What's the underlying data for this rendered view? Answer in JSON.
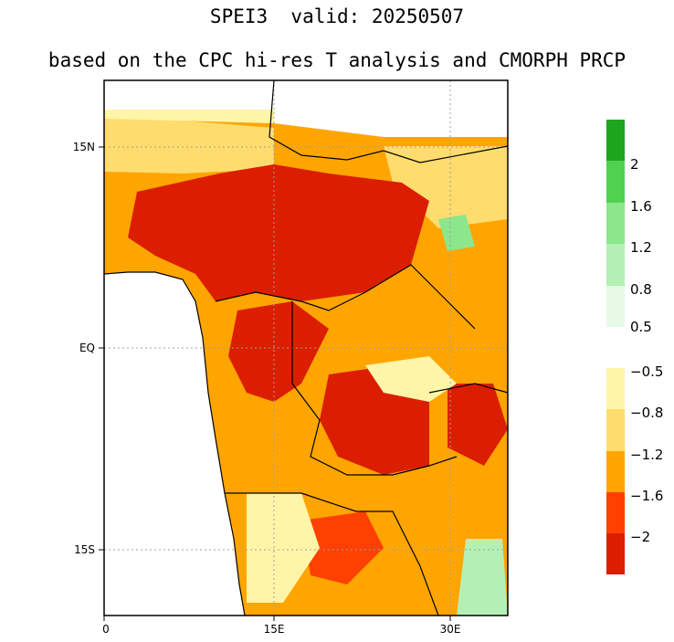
{
  "title": "SPEI3  valid: 20250507",
  "subtitle": "based on the CPC hi-res T analysis and CMORPH PRCP",
  "map": {
    "lat_labels": [
      "15N",
      "EQ",
      "15S"
    ],
    "lon_labels": [
      "0",
      "15E",
      "30E"
    ]
  },
  "colorbar": {
    "bins": [
      {
        "color": "#1ea51e"
      },
      {
        "color": "#50d250"
      },
      {
        "color": "#8ce68c"
      },
      {
        "color": "#b4f0b4"
      },
      {
        "color": "#e6fae6"
      },
      {
        "color": "#ffffff"
      },
      {
        "color": "#fff5a8"
      },
      {
        "color": "#ffdc6e"
      },
      {
        "color": "#ffa500"
      },
      {
        "color": "#ff4000"
      },
      {
        "color": "#dc1e00"
      }
    ],
    "tick_labels": [
      "2",
      "1.6",
      "1.2",
      "0.8",
      "0.5",
      "−0.5",
      "−0.8",
      "−1.2",
      "−1.6",
      "−2"
    ]
  },
  "colors": {
    "ocean": "#ffffff",
    "border": "#000000",
    "admin": "#a0a0a0",
    "grid": "#a0a0a0"
  }
}
